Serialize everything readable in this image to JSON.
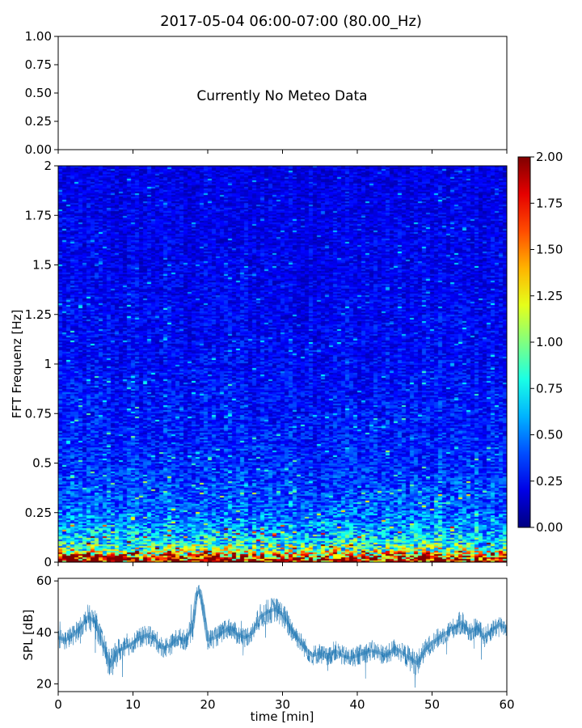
{
  "title": "2017-05-04 06:00-07:00 (80.00_Hz)",
  "chart_data": [
    {
      "type": "line",
      "panel": "meteo",
      "annotation": "Currently No Meteo Data",
      "ylim": [
        0,
        1
      ],
      "yticks": [
        0,
        0.25,
        0.5,
        0.75,
        1
      ],
      "ytick_labels": [
        "0.00",
        "0.25",
        "0.50",
        "0.75",
        "1.00"
      ],
      "xlim": [
        0,
        60
      ],
      "xticks": [
        0,
        10,
        20,
        30,
        40,
        50,
        60
      ],
      "series": []
    },
    {
      "type": "heatmap",
      "panel": "spectrogram",
      "ylabel": "FFT Frequenz [Hz]",
      "xlim": [
        0,
        60
      ],
      "ylim": [
        0,
        2
      ],
      "yticks": [
        0,
        0.25,
        0.5,
        0.75,
        1,
        1.25,
        1.5,
        1.75,
        2
      ],
      "ytick_labels": [
        "0",
        "0.25",
        "0.5",
        "0.75",
        "1",
        "1.25",
        "1.5",
        "1.75",
        "2"
      ],
      "colormap": "jet",
      "colorbar": {
        "vmin": 0,
        "vmax": 2,
        "ticks": [
          0,
          0.25,
          0.5,
          0.75,
          1,
          1.25,
          1.5,
          1.75,
          2
        ],
        "tick_labels": [
          "0.00",
          "0.25",
          "0.50",
          "0.75",
          "1.00",
          "1.25",
          "1.50",
          "1.75",
          "2.00"
        ]
      },
      "typical_level_by_frequency": [
        {
          "frequency": 0.01,
          "value": 2.0
        },
        {
          "frequency": 0.03,
          "value": 1.6
        },
        {
          "frequency": 0.06,
          "value": 1.0
        },
        {
          "frequency": 0.1,
          "value": 0.75
        },
        {
          "frequency": 0.15,
          "value": 0.6
        },
        {
          "frequency": 0.25,
          "value": 0.45
        },
        {
          "frequency": 0.5,
          "value": 0.32
        },
        {
          "frequency": 1.0,
          "value": 0.25
        },
        {
          "frequency": 1.5,
          "value": 0.22
        },
        {
          "frequency": 2.0,
          "value": 0.2
        }
      ]
    },
    {
      "type": "line",
      "panel": "spl",
      "xlabel": "time [min]",
      "ylabel": "SPL [dB]",
      "xlim": [
        0,
        60
      ],
      "ylim": [
        17,
        61
      ],
      "xticks": [
        0,
        10,
        20,
        30,
        40,
        50,
        60
      ],
      "yticks": [
        20,
        40,
        60
      ],
      "color": "#1f77b4",
      "series": [
        {
          "x": [
            0,
            1,
            2,
            3,
            4,
            5,
            6,
            7,
            8,
            9,
            10,
            11,
            12,
            13,
            14,
            15,
            16,
            17,
            18,
            18.5,
            19,
            19.5,
            20,
            21,
            22,
            23,
            24,
            25,
            26,
            27,
            28,
            29,
            30,
            31,
            32,
            33,
            34,
            35,
            36,
            37,
            38,
            39,
            40,
            41,
            42,
            43,
            44,
            45,
            46,
            47,
            48,
            49,
            50,
            51,
            52,
            53,
            54,
            55,
            56,
            57,
            58,
            59,
            60
          ],
          "y": [
            38,
            37,
            39,
            42,
            46,
            44,
            35,
            27,
            33,
            34,
            36,
            38,
            39,
            37,
            34,
            35,
            38,
            37,
            42,
            55,
            56,
            47,
            37,
            38,
            40,
            42,
            39,
            38,
            40,
            46,
            48,
            49,
            47,
            42,
            38,
            34,
            31,
            32,
            30,
            33,
            31,
            30,
            31,
            32,
            33,
            32,
            31,
            34,
            32,
            30,
            28,
            33,
            36,
            38,
            40,
            42,
            44,
            40,
            42,
            38,
            41,
            43,
            42
          ],
          "spread": [
            4,
            4,
            4,
            4,
            5,
            5,
            5,
            6,
            5,
            4,
            4,
            4,
            4,
            4,
            4,
            4,
            4,
            4,
            5,
            3,
            3,
            5,
            4,
            4,
            4,
            4,
            4,
            4,
            4,
            5,
            5,
            5,
            5,
            5,
            4,
            4,
            4,
            4,
            4,
            4,
            4,
            4,
            4,
            4,
            4,
            4,
            4,
            4,
            4,
            5,
            5,
            4,
            4,
            4,
            4,
            4,
            5,
            4,
            4,
            4,
            4,
            4,
            4
          ]
        }
      ]
    }
  ]
}
